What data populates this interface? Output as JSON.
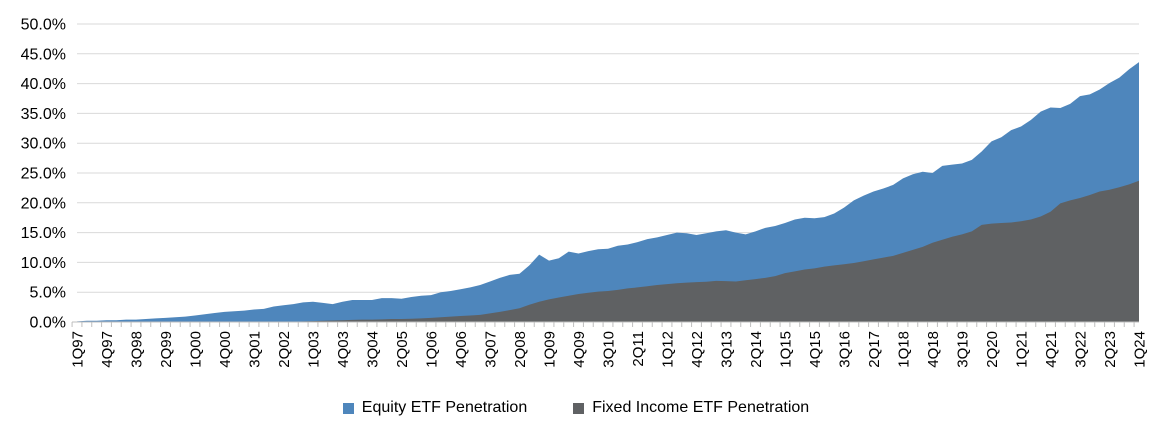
{
  "legend": {
    "equity_label": "Equity ETF Penetration",
    "fixed_income_label": "Fixed Income ETF Penetration"
  },
  "colors": {
    "equity": "#4E86BC",
    "fixed_income": "#5F6163",
    "gridline": "#D9D9D9",
    "axis": "#BFBFBF",
    "text": "#000000"
  },
  "chart_data": {
    "type": "area",
    "mode": "overlap",
    "title": "",
    "xlabel": "",
    "ylabel": "",
    "ylim": [
      0,
      50
    ],
    "y_tick_step": 5,
    "grid": true,
    "legend_position": "bottom-center",
    "y_tick_labels": [
      "50.0%",
      "45.0%",
      "40.0%",
      "35.0%",
      "30.0%",
      "25.0%",
      "20.0%",
      "15.0%",
      "10.0%",
      "5.0%",
      "0.0%"
    ],
    "x_tick_label_every": 3,
    "x_tick_labels": [
      "1Q97",
      "4Q97",
      "3Q98",
      "2Q99",
      "1Q00",
      "4Q00",
      "3Q01",
      "2Q02",
      "1Q03",
      "4Q03",
      "3Q04",
      "2Q05",
      "1Q06",
      "4Q06",
      "3Q07",
      "2Q08",
      "1Q09",
      "4Q09",
      "3Q10",
      "2Q11",
      "1Q12",
      "4Q12",
      "3Q13",
      "2Q14",
      "1Q15",
      "4Q15",
      "3Q16",
      "2Q17",
      "1Q18",
      "4Q18",
      "3Q19",
      "2Q20",
      "1Q21",
      "4Q21",
      "3Q22",
      "2Q23",
      "1Q24"
    ],
    "categories": [
      "1Q97",
      "2Q97",
      "3Q97",
      "4Q97",
      "1Q98",
      "2Q98",
      "3Q98",
      "4Q98",
      "1Q99",
      "2Q99",
      "3Q99",
      "4Q99",
      "1Q00",
      "2Q00",
      "3Q00",
      "4Q00",
      "1Q01",
      "2Q01",
      "3Q01",
      "4Q01",
      "1Q02",
      "2Q02",
      "3Q02",
      "4Q02",
      "1Q03",
      "2Q03",
      "3Q03",
      "4Q03",
      "1Q04",
      "2Q04",
      "3Q04",
      "4Q04",
      "1Q05",
      "2Q05",
      "3Q05",
      "4Q05",
      "1Q06",
      "2Q06",
      "3Q06",
      "4Q06",
      "1Q07",
      "2Q07",
      "3Q07",
      "4Q07",
      "1Q08",
      "2Q08",
      "3Q08",
      "4Q08",
      "1Q09",
      "2Q09",
      "3Q09",
      "4Q09",
      "1Q10",
      "2Q10",
      "3Q10",
      "4Q10",
      "1Q11",
      "2Q11",
      "3Q11",
      "4Q11",
      "1Q12",
      "2Q12",
      "3Q12",
      "4Q12",
      "1Q13",
      "2Q13",
      "3Q13",
      "4Q13",
      "1Q14",
      "2Q14",
      "3Q14",
      "4Q14",
      "1Q15",
      "2Q15",
      "3Q15",
      "4Q15",
      "1Q16",
      "2Q16",
      "3Q16",
      "4Q16",
      "1Q17",
      "2Q17",
      "3Q17",
      "4Q17",
      "1Q18",
      "2Q18",
      "3Q18",
      "4Q18",
      "1Q19",
      "2Q19",
      "3Q19",
      "4Q19",
      "1Q20",
      "2Q20",
      "3Q20",
      "4Q20",
      "1Q21",
      "2Q21",
      "3Q21",
      "4Q21",
      "1Q22",
      "2Q22",
      "3Q22",
      "4Q22",
      "1Q23",
      "2Q23",
      "3Q23",
      "4Q23",
      "1Q24"
    ],
    "series": [
      {
        "name": "Equity ETF Penetration",
        "color": "#4E86BC",
        "values": [
          0.1,
          0.2,
          0.2,
          0.3,
          0.3,
          0.4,
          0.4,
          0.5,
          0.6,
          0.7,
          0.8,
          0.9,
          1.1,
          1.3,
          1.5,
          1.7,
          1.8,
          1.9,
          2.1,
          2.2,
          2.6,
          2.8,
          3.0,
          3.3,
          3.4,
          3.2,
          3.0,
          3.4,
          3.7,
          3.7,
          3.7,
          4.0,
          4.0,
          3.9,
          4.2,
          4.4,
          4.5,
          5.0,
          5.2,
          5.5,
          5.8,
          6.2,
          6.8,
          7.4,
          7.9,
          8.1,
          9.5,
          11.3,
          10.3,
          10.7,
          11.8,
          11.5,
          11.9,
          12.2,
          12.3,
          12.8,
          13.0,
          13.4,
          13.9,
          14.2,
          14.6,
          15.0,
          14.9,
          14.6,
          14.9,
          15.2,
          15.4,
          15.0,
          14.7,
          15.2,
          15.8,
          16.1,
          16.6,
          17.2,
          17.5,
          17.4,
          17.6,
          18.2,
          19.2,
          20.4,
          21.2,
          21.9,
          22.4,
          23.0,
          24.1,
          24.8,
          25.2,
          25.0,
          26.2,
          26.4,
          26.6,
          27.2,
          28.6,
          30.3,
          31.0,
          32.2,
          32.8,
          33.9,
          35.3,
          36.0,
          35.9,
          36.6,
          37.9,
          38.2,
          39.0,
          40.1,
          41.0,
          42.4,
          43.6
        ]
      },
      {
        "name": "Fixed Income ETF Penetration",
        "color": "#5F6163",
        "values": [
          0,
          0,
          0,
          0,
          0,
          0,
          0,
          0,
          0,
          0,
          0,
          0,
          0,
          0,
          0,
          0,
          0,
          0,
          0,
          0,
          0,
          0,
          0.05,
          0.1,
          0.15,
          0.2,
          0.25,
          0.3,
          0.35,
          0.4,
          0.4,
          0.45,
          0.5,
          0.5,
          0.55,
          0.6,
          0.7,
          0.8,
          0.9,
          1.0,
          1.1,
          1.2,
          1.45,
          1.7,
          2.0,
          2.3,
          2.9,
          3.4,
          3.8,
          4.1,
          4.4,
          4.7,
          4.9,
          5.1,
          5.2,
          5.4,
          5.65,
          5.8,
          6.0,
          6.2,
          6.35,
          6.5,
          6.6,
          6.7,
          6.75,
          6.9,
          6.85,
          6.8,
          7.0,
          7.2,
          7.4,
          7.7,
          8.2,
          8.5,
          8.8,
          9.0,
          9.3,
          9.5,
          9.7,
          9.9,
          10.2,
          10.5,
          10.8,
          11.1,
          11.6,
          12.1,
          12.6,
          13.3,
          13.8,
          14.3,
          14.7,
          15.2,
          16.3,
          16.5,
          16.6,
          16.7,
          16.9,
          17.2,
          17.7,
          18.5,
          19.9,
          20.4,
          20.8,
          21.3,
          21.9,
          22.2,
          22.6,
          23.1,
          23.7
        ]
      }
    ]
  }
}
